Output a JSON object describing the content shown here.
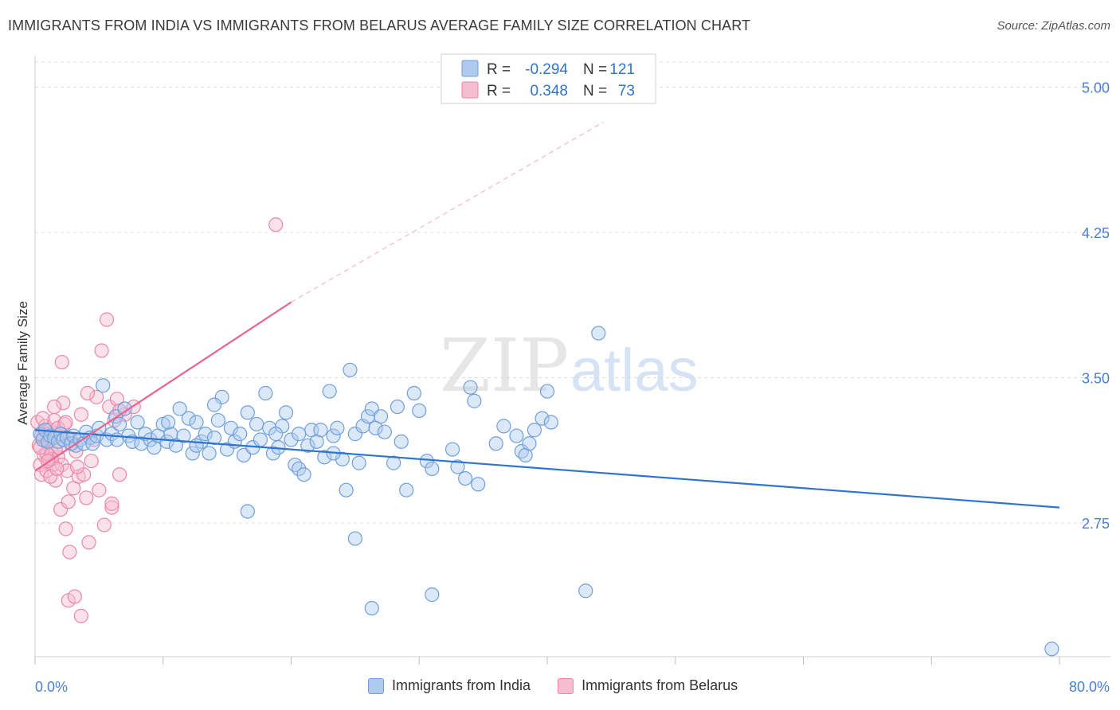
{
  "header": {
    "title": "IMMIGRANTS FROM INDIA VS IMMIGRANTS FROM BELARUS AVERAGE FAMILY SIZE CORRELATION CHART",
    "source": "Source: ZipAtlas.com"
  },
  "watermark": {
    "zip": "ZIP",
    "atlas": "atlas"
  },
  "colors": {
    "india_fill": "#aecbee",
    "india_stroke": "#6f9fdc",
    "india_line": "#2f74d0",
    "belarus_fill": "#f6bcd0",
    "belarus_stroke": "#ec86a8",
    "belarus_line": "#e8638f",
    "tick_label": "#4a7fd4",
    "grid": "#dcdcdc"
  },
  "stats_legend": [
    {
      "r_label": "R =",
      "r_value": "-0.294",
      "n_label": "N =",
      "n_value": "121"
    },
    {
      "r_label": "R =",
      "r_value": "0.348",
      "n_label": "N =",
      "n_value": "73"
    }
  ],
  "chart_data": {
    "type": "scatter",
    "title": "IMMIGRANTS FROM INDIA VS IMMIGRANTS FROM BELARUS AVERAGE FAMILY SIZE CORRELATION CHART",
    "xlabel": "",
    "ylabel": "Average Family Size",
    "xlim": [
      0,
      80
    ],
    "ylim": [
      2.06,
      5.08
    ],
    "x_tick_labels": [
      "0.0%",
      "80.0%"
    ],
    "y_ticks": [
      2.75,
      3.5,
      4.25,
      5.0
    ],
    "y_tick_labels": [
      "2.75",
      "3.50",
      "4.25",
      "5.00"
    ],
    "grid": true,
    "legend_position": "top-center",
    "series": [
      {
        "name": "Immigrants from India",
        "r": -0.294,
        "n": 121,
        "trend": {
          "x": [
            0,
            80
          ],
          "y": [
            3.23,
            2.83
          ]
        },
        "points": [
          [
            0.4,
            3.21
          ],
          [
            0.6,
            3.18
          ],
          [
            0.8,
            3.23
          ],
          [
            1.0,
            3.17
          ],
          [
            1.2,
            3.2
          ],
          [
            1.5,
            3.19
          ],
          [
            1.8,
            3.17
          ],
          [
            2.0,
            3.21
          ],
          [
            2.2,
            3.18
          ],
          [
            2.5,
            3.19
          ],
          [
            2.8,
            3.16
          ],
          [
            3.0,
            3.2
          ],
          [
            3.2,
            3.15
          ],
          [
            3.5,
            3.18
          ],
          [
            3.8,
            3.16
          ],
          [
            4.0,
            3.22
          ],
          [
            4.3,
            3.19
          ],
          [
            4.5,
            3.16
          ],
          [
            4.8,
            3.2
          ],
          [
            5.0,
            3.24
          ],
          [
            5.3,
            3.46
          ],
          [
            5.6,
            3.18
          ],
          [
            6.0,
            3.21
          ],
          [
            6.3,
            3.3
          ],
          [
            6.6,
            3.26
          ],
          [
            7.0,
            3.34
          ],
          [
            7.3,
            3.2
          ],
          [
            7.6,
            3.17
          ],
          [
            8.0,
            3.27
          ],
          [
            8.3,
            3.16
          ],
          [
            8.6,
            3.21
          ],
          [
            9.0,
            3.18
          ],
          [
            9.3,
            3.14
          ],
          [
            9.6,
            3.2
          ],
          [
            10.0,
            3.26
          ],
          [
            10.3,
            3.17
          ],
          [
            10.6,
            3.21
          ],
          [
            11.0,
            3.15
          ],
          [
            11.3,
            3.34
          ],
          [
            11.6,
            3.2
          ],
          [
            12.0,
            3.29
          ],
          [
            12.3,
            3.11
          ],
          [
            12.6,
            3.27
          ],
          [
            13.0,
            3.17
          ],
          [
            13.3,
            3.21
          ],
          [
            13.6,
            3.11
          ],
          [
            14.0,
            3.19
          ],
          [
            14.3,
            3.28
          ],
          [
            14.6,
            3.4
          ],
          [
            15.0,
            3.13
          ],
          [
            15.3,
            3.24
          ],
          [
            15.6,
            3.17
          ],
          [
            16.0,
            3.21
          ],
          [
            16.3,
            3.1
          ],
          [
            16.6,
            3.32
          ],
          [
            17.0,
            3.14
          ],
          [
            17.3,
            3.26
          ],
          [
            17.6,
            3.18
          ],
          [
            18.0,
            3.42
          ],
          [
            18.3,
            3.24
          ],
          [
            18.6,
            3.11
          ],
          [
            19.0,
            3.14
          ],
          [
            19.3,
            3.25
          ],
          [
            19.6,
            3.32
          ],
          [
            20.0,
            3.18
          ],
          [
            20.3,
            3.05
          ],
          [
            20.6,
            3.03
          ],
          [
            21.0,
            3.0
          ],
          [
            21.3,
            3.15
          ],
          [
            21.6,
            3.23
          ],
          [
            22.0,
            3.17
          ],
          [
            22.3,
            3.23
          ],
          [
            22.6,
            3.09
          ],
          [
            23.0,
            3.43
          ],
          [
            23.3,
            3.2
          ],
          [
            23.6,
            3.24
          ],
          [
            24.0,
            3.08
          ],
          [
            24.3,
            2.92
          ],
          [
            24.6,
            3.54
          ],
          [
            25.0,
            3.21
          ],
          [
            25.3,
            3.06
          ],
          [
            25.6,
            3.25
          ],
          [
            26.0,
            3.3
          ],
          [
            26.3,
            3.34
          ],
          [
            26.6,
            3.24
          ],
          [
            27.0,
            3.3
          ],
          [
            27.3,
            3.22
          ],
          [
            28.0,
            3.06
          ],
          [
            28.3,
            3.35
          ],
          [
            28.6,
            3.17
          ],
          [
            29.0,
            2.92
          ],
          [
            29.6,
            3.42
          ],
          [
            30.0,
            3.33
          ],
          [
            30.6,
            3.07
          ],
          [
            31.0,
            3.03
          ],
          [
            32.6,
            3.13
          ],
          [
            33.0,
            3.04
          ],
          [
            33.6,
            2.98
          ],
          [
            34.0,
            3.45
          ],
          [
            34.3,
            3.38
          ],
          [
            34.6,
            2.95
          ],
          [
            36.0,
            3.16
          ],
          [
            36.6,
            3.25
          ],
          [
            37.6,
            3.2
          ],
          [
            38.0,
            3.12
          ],
          [
            38.3,
            3.1
          ],
          [
            38.6,
            3.16
          ],
          [
            39.0,
            3.23
          ],
          [
            39.6,
            3.29
          ],
          [
            40.0,
            3.43
          ],
          [
            40.3,
            3.27
          ],
          [
            16.6,
            2.81
          ],
          [
            18.8,
            3.21
          ],
          [
            23.3,
            3.11
          ],
          [
            10.4,
            3.27
          ],
          [
            14.0,
            3.36
          ],
          [
            20.6,
            3.21
          ],
          [
            25.0,
            2.67
          ],
          [
            26.3,
            2.31
          ],
          [
            31.0,
            2.38
          ],
          [
            44.0,
            3.73
          ],
          [
            43.0,
            2.4
          ],
          [
            79.4,
            2.1
          ],
          [
            6.4,
            3.18
          ],
          [
            12.6,
            3.15
          ]
        ]
      },
      {
        "name": "Immigrants from Belarus",
        "r": 0.348,
        "n": 73,
        "trend": {
          "x": [
            0,
            20
          ],
          "y": [
            3.02,
            3.89
          ]
        },
        "trend_extension": {
          "x": [
            20,
            44.4
          ],
          "y": [
            3.89,
            4.82
          ]
        },
        "points": [
          [
            0.2,
            3.27
          ],
          [
            0.3,
            3.15
          ],
          [
            0.4,
            3.05
          ],
          [
            0.5,
            3.0
          ],
          [
            0.6,
            3.19
          ],
          [
            0.7,
            3.1
          ],
          [
            0.8,
            3.25
          ],
          [
            0.9,
            3.02
          ],
          [
            1.0,
            3.16
          ],
          [
            1.1,
            3.08
          ],
          [
            1.2,
            3.23
          ],
          [
            1.3,
            3.12
          ],
          [
            1.4,
            3.05
          ],
          [
            1.5,
            3.28
          ],
          [
            1.6,
            2.97
          ],
          [
            1.7,
            3.2
          ],
          [
            1.8,
            3.09
          ],
          [
            1.9,
            3.14
          ],
          [
            2.0,
            2.82
          ],
          [
            2.1,
            3.05
          ],
          [
            2.2,
            3.37
          ],
          [
            2.3,
            3.26
          ],
          [
            2.4,
            2.72
          ],
          [
            2.5,
            3.02
          ],
          [
            2.6,
            2.86
          ],
          [
            2.7,
            2.6
          ],
          [
            2.8,
            3.18
          ],
          [
            3.0,
            2.93
          ],
          [
            3.2,
            3.12
          ],
          [
            3.4,
            2.99
          ],
          [
            3.6,
            3.31
          ],
          [
            3.8,
            3.0
          ],
          [
            4.0,
            2.88
          ],
          [
            4.2,
            2.65
          ],
          [
            4.4,
            3.07
          ],
          [
            4.6,
            3.18
          ],
          [
            4.8,
            3.4
          ],
          [
            5.0,
            2.92
          ],
          [
            5.2,
            3.64
          ],
          [
            5.4,
            2.74
          ],
          [
            5.6,
            3.8
          ],
          [
            5.8,
            3.35
          ],
          [
            6.0,
            2.83
          ],
          [
            6.2,
            3.28
          ],
          [
            6.4,
            3.39
          ],
          [
            6.6,
            3.0
          ],
          [
            7.0,
            3.31
          ],
          [
            0.6,
            3.29
          ],
          [
            1.1,
            3.21
          ],
          [
            1.6,
            3.13
          ],
          [
            2.1,
            3.58
          ],
          [
            2.6,
            2.35
          ],
          [
            3.1,
            2.37
          ],
          [
            3.6,
            2.27
          ],
          [
            4.1,
            3.42
          ],
          [
            1.3,
            3.08
          ],
          [
            1.8,
            3.24
          ],
          [
            0.9,
            3.11
          ],
          [
            2.4,
            3.27
          ],
          [
            1.5,
            3.35
          ],
          [
            0.8,
            3.18
          ],
          [
            1.2,
            2.99
          ],
          [
            2.0,
            3.21
          ],
          [
            0.4,
            3.14
          ],
          [
            1.7,
            3.03
          ],
          [
            2.9,
            3.16
          ],
          [
            3.3,
            3.04
          ],
          [
            6.0,
            2.85
          ],
          [
            6.6,
            3.33
          ],
          [
            7.7,
            3.35
          ],
          [
            18.8,
            4.29
          ],
          [
            0.5,
            3.2
          ],
          [
            1.0,
            3.07
          ]
        ]
      }
    ]
  },
  "bottom_legend": [
    {
      "label": "Immigrants from India"
    },
    {
      "label": "Immigrants from Belarus"
    }
  ]
}
